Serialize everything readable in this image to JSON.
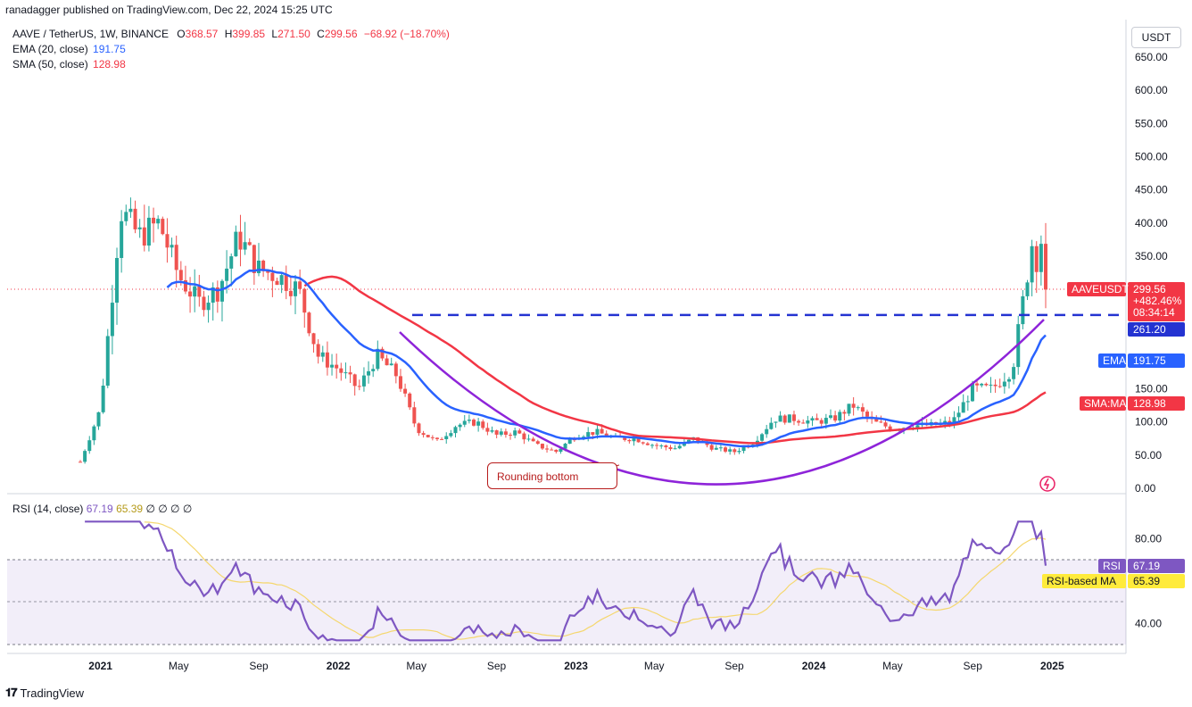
{
  "header": {
    "published_line": "ranadagger published on TradingView.com, Dec 22, 2024 15:25 UTC"
  },
  "legend": {
    "symbol_line": {
      "title": "AAVE / TetherUS, 1W, BINANCE",
      "o_label": "O",
      "o_value": "368.57",
      "h_label": "H",
      "h_value": "399.85",
      "l_label": "L",
      "l_value": "271.50",
      "c_label": "C",
      "c_value": "299.56",
      "change": "−68.92 (−18.70%)"
    },
    "ema": {
      "label": "EMA (20, close)",
      "value": "191.75",
      "color": "#2962ff"
    },
    "sma": {
      "label": "SMA (50, close)",
      "value": "128.98",
      "color": "#f23645"
    }
  },
  "rsi_legend": {
    "label": "RSI (14, close)",
    "rsi_value": "67.19",
    "ma_value": "65.39",
    "extras": "∅ ∅ ∅ ∅"
  },
  "currency_button": "USDT",
  "price_axis": {
    "ticks": [
      "650.00",
      "600.00",
      "550.00",
      "500.00",
      "450.00",
      "400.00",
      "350.00",
      "150.00",
      "100.00",
      "50.00",
      "0.00"
    ]
  },
  "rsi_axis": {
    "ticks": [
      "80.00",
      "40.00"
    ]
  },
  "time_axis": {
    "labels": [
      "2021",
      "May",
      "Sep",
      "2022",
      "May",
      "Sep",
      "2023",
      "May",
      "Sep",
      "2024",
      "May",
      "Sep",
      "2025"
    ]
  },
  "badges": {
    "last_price": {
      "ticker": "AAVEUSDT",
      "price": "299.56",
      "change_pct": "+482.46%",
      "countdown": "08:34:14",
      "color": "#f23645"
    },
    "level": {
      "value": "261.20",
      "color": "#2433d1"
    },
    "ema": {
      "label": "EMA",
      "value": "191.75",
      "color": "#2962ff"
    },
    "sma": {
      "label": "SMA:MA",
      "value": "128.98",
      "color": "#f23645"
    },
    "rsi": {
      "label": "RSI",
      "value": "67.19",
      "color": "#7e57c2"
    },
    "rsi_ma": {
      "label": "RSI-based MA",
      "value": "65.39",
      "color": "#ffeb3b"
    }
  },
  "annotation": {
    "text": "Rounding bottom"
  },
  "brand": {
    "name": "TradingView"
  },
  "colors": {
    "up": "#26a69a",
    "down": "#ef5350",
    "ema": "#2962ff",
    "sma": "#f23645",
    "rounding": "#8e24d9",
    "level": "#2433d1",
    "rsi": "#7e57c2",
    "rsi_ma": "#f5d76e"
  },
  "chart_data": {
    "type": "candlestick",
    "title": "AAVE / TetherUS, 1W, BINANCE",
    "ylim": [
      0,
      680
    ],
    "y_log": false,
    "horizontal_level": 261.2,
    "price_path": [
      [
        "2020-12",
        40
      ],
      [
        "2021-01",
        120
      ],
      [
        "2021-02",
        420
      ],
      [
        "2021-03",
        380
      ],
      [
        "2021-04",
        400
      ],
      [
        "2021-05",
        320
      ],
      [
        "2021-06",
        280
      ],
      [
        "2021-07",
        300
      ],
      [
        "2021-08",
        380
      ],
      [
        "2021-09",
        330
      ],
      [
        "2021-10",
        320
      ],
      [
        "2021-11",
        300
      ],
      [
        "2021-12",
        200
      ],
      [
        "2022-01",
        180
      ],
      [
        "2022-02",
        150
      ],
      [
        "2022-03",
        200
      ],
      [
        "2022-04",
        170
      ],
      [
        "2022-05",
        90
      ],
      [
        "2022-06",
        70
      ],
      [
        "2022-07",
        95
      ],
      [
        "2022-08",
        100
      ],
      [
        "2022-09",
        80
      ],
      [
        "2022-10",
        85
      ],
      [
        "2022-11",
        65
      ],
      [
        "2022-12",
        55
      ],
      [
        "2023-01",
        80
      ],
      [
        "2023-02",
        85
      ],
      [
        "2023-03",
        75
      ],
      [
        "2023-04",
        75
      ],
      [
        "2023-05",
        65
      ],
      [
        "2023-06",
        60
      ],
      [
        "2023-07",
        75
      ],
      [
        "2023-08",
        60
      ],
      [
        "2023-09",
        55
      ],
      [
        "2023-10",
        70
      ],
      [
        "2023-11",
        105
      ],
      [
        "2023-12",
        105
      ],
      [
        "2024-01",
        100
      ],
      [
        "2024-02",
        105
      ],
      [
        "2024-03",
        125
      ],
      [
        "2024-04",
        100
      ],
      [
        "2024-05",
        90
      ],
      [
        "2024-06",
        95
      ],
      [
        "2024-07",
        95
      ],
      [
        "2024-08",
        100
      ],
      [
        "2024-09",
        150
      ],
      [
        "2024-10",
        150
      ],
      [
        "2024-11",
        180
      ],
      [
        "2024-12",
        370
      ],
      [
        "2024-12-22",
        299.56
      ]
    ],
    "ema20_last": 191.75,
    "sma50_last": 128.98,
    "rsi_last": 67.19,
    "rsi_ma_last": 65.39,
    "rsi_band": [
      30,
      70
    ]
  }
}
